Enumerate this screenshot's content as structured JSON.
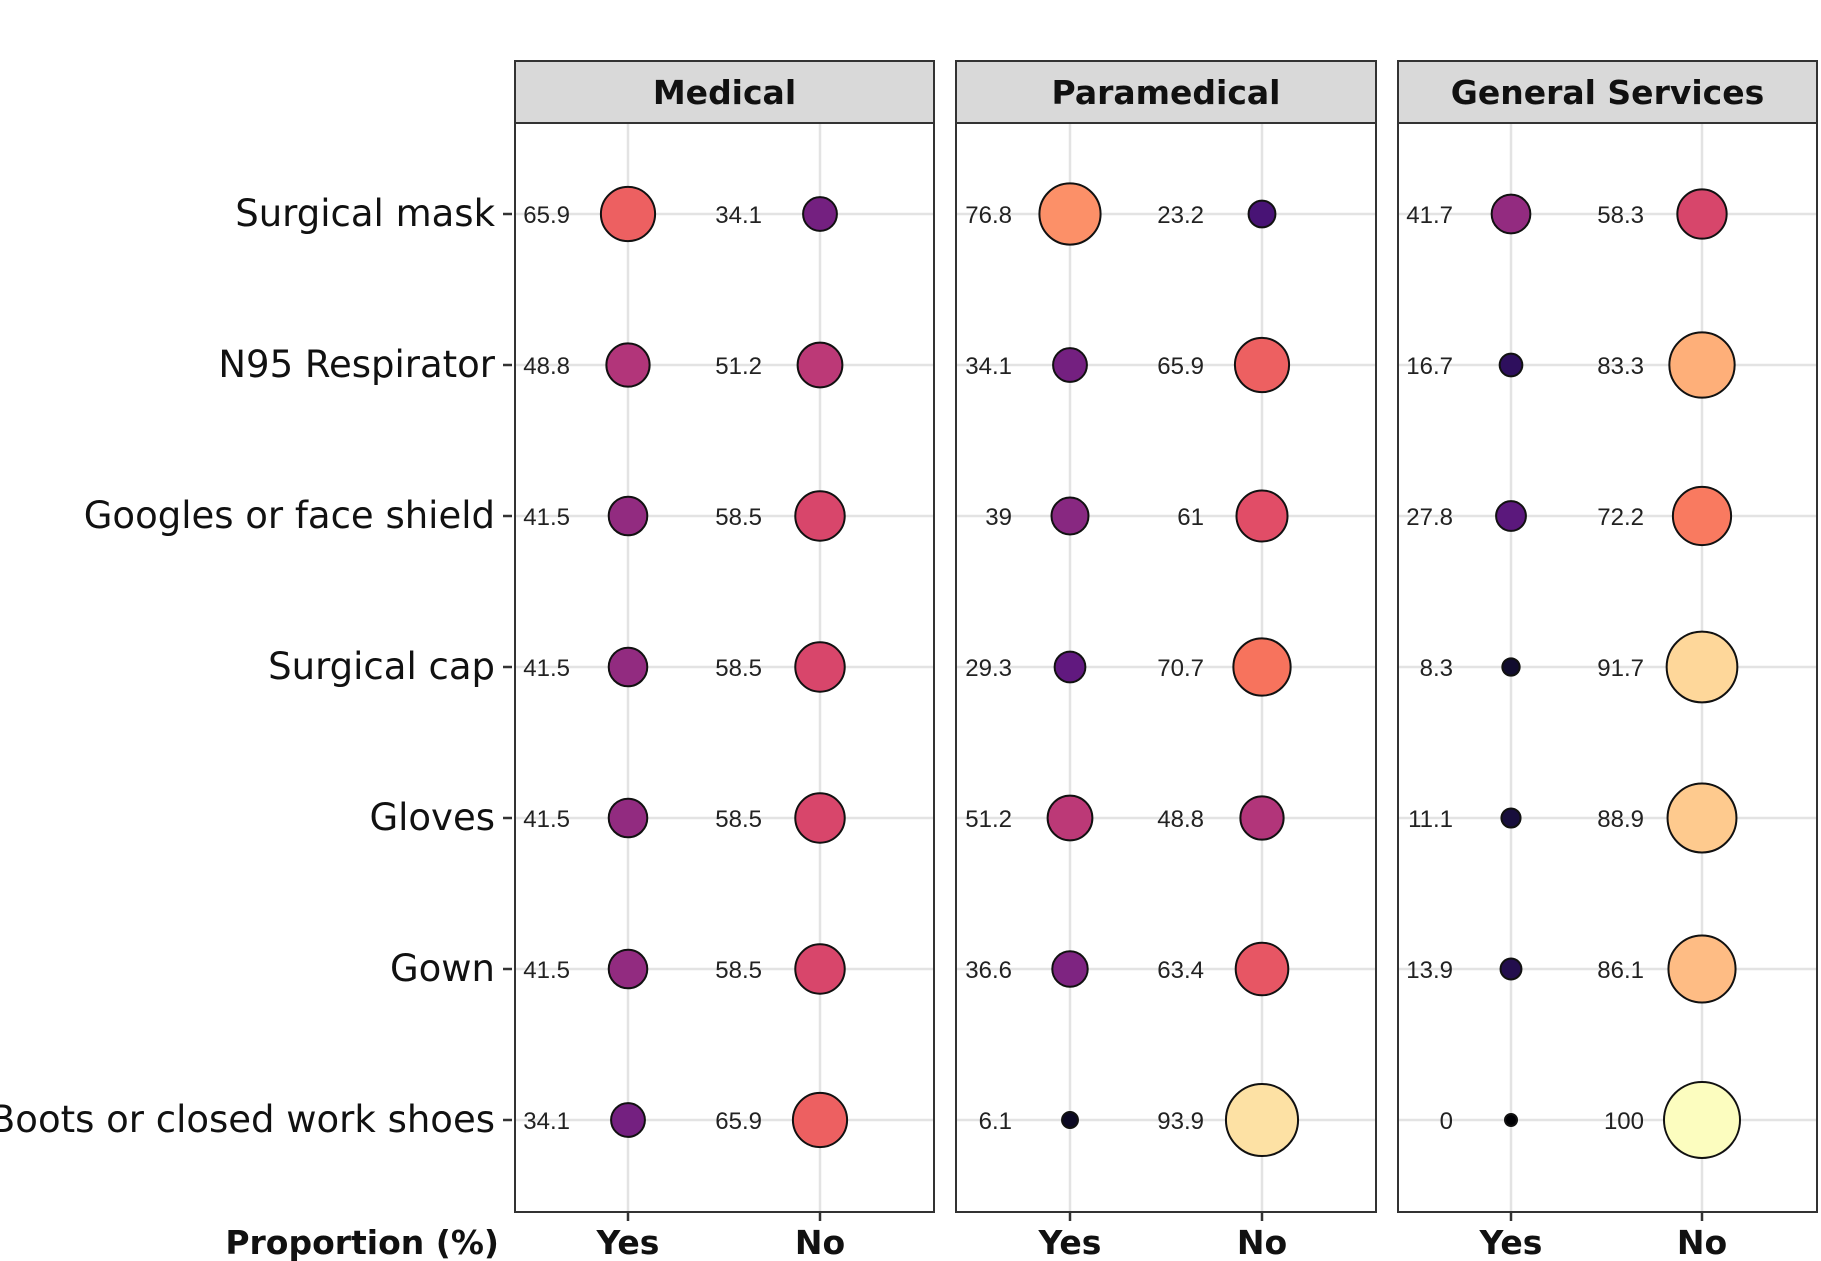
{
  "chart_data": {
    "type": "scatter",
    "xlabel": "Proportion (%)",
    "x_categories": [
      "Yes",
      "No"
    ],
    "categories": [
      "Surgical mask",
      "N95 Respirator",
      "Googles or face shield",
      "Surgical cap",
      "Gloves",
      "Gown",
      "Boots or closed work shoes"
    ],
    "grid": true,
    "size_and_color_encode": "value",
    "colormap": "magma",
    "facets": [
      {
        "title": "Medical",
        "series": [
          {
            "name": "Yes",
            "values": [
              65.9,
              48.8,
              41.5,
              41.5,
              41.5,
              41.5,
              34.1
            ]
          },
          {
            "name": "No",
            "values": [
              34.1,
              51.2,
              58.5,
              58.5,
              58.5,
              58.5,
              65.9
            ]
          }
        ]
      },
      {
        "title": "Paramedical",
        "series": [
          {
            "name": "Yes",
            "values": [
              76.8,
              34.1,
              39,
              29.3,
              51.2,
              36.6,
              6.1
            ]
          },
          {
            "name": "No",
            "values": [
              23.2,
              65.9,
              61,
              70.7,
              48.8,
              63.4,
              93.9
            ]
          }
        ]
      },
      {
        "title": "General Services",
        "series": [
          {
            "name": "Yes",
            "values": [
              41.7,
              16.7,
              27.8,
              8.3,
              11.1,
              13.9,
              0
            ]
          },
          {
            "name": "No",
            "values": [
              58.3,
              83.3,
              72.2,
              91.7,
              88.9,
              86.1,
              100
            ]
          }
        ]
      }
    ]
  }
}
